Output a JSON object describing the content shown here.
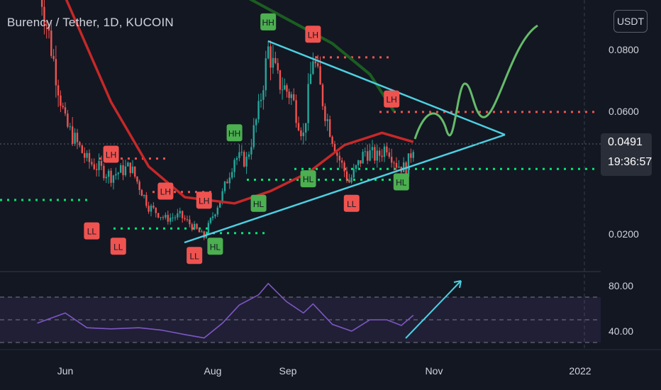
{
  "header": {
    "title": "Burency / Tether, 1D, KUCOIN",
    "currency_button": "USDT"
  },
  "price_box": {
    "price": "0.0491",
    "countdown": "19:36:57"
  },
  "colors": {
    "background": "#131722",
    "candle_up": "#26a69a",
    "candle_down": "#ef5350",
    "ma_red": "#c62828",
    "ma_green": "#1b5e20",
    "trendline": "#4dd0e1",
    "projection": "#66bb6a",
    "rsi": "#7e57c2",
    "hh_tag": "#4caf50",
    "ll_tag": "#ef5350",
    "resistance_dots": "#ef5350",
    "support_dots": "#00e676"
  },
  "chart_data": [
    {
      "type": "candlestick",
      "title": "Burency / Tether, 1D, KUCOIN",
      "x_tick_labels": [
        "Jun",
        "Aug",
        "Sep",
        "Nov",
        "2022"
      ],
      "y_tick_labels": [
        "0.0800",
        "0.0600",
        "0.0200"
      ],
      "current_price": 0.0491,
      "price_series": [
        {
          "x": "May 20",
          "y": 0.105
        },
        {
          "x": "Jun 1",
          "y": 0.056
        },
        {
          "x": "Jun 10",
          "y": 0.044
        },
        {
          "x": "Jun 20",
          "y": 0.039
        },
        {
          "x": "Jun 28",
          "y": 0.042
        },
        {
          "x": "Jul 5",
          "y": 0.029
        },
        {
          "x": "Jul 12",
          "y": 0.025
        },
        {
          "x": "Jul 18",
          "y": 0.026
        },
        {
          "x": "Jul 24",
          "y": 0.022
        },
        {
          "x": "Jul 28",
          "y": 0.019
        },
        {
          "x": "Aug 1",
          "y": 0.026
        },
        {
          "x": "Aug 5",
          "y": 0.033
        },
        {
          "x": "Aug 10",
          "y": 0.045
        },
        {
          "x": "Aug 15",
          "y": 0.044
        },
        {
          "x": "Aug 20",
          "y": 0.06
        },
        {
          "x": "Aug 24",
          "y": 0.08
        },
        {
          "x": "Aug 28",
          "y": 0.07
        },
        {
          "x": "Sep 3",
          "y": 0.065
        },
        {
          "x": "Sep 8",
          "y": 0.052
        },
        {
          "x": "Sep 12",
          "y": 0.078
        },
        {
          "x": "Sep 17",
          "y": 0.06
        },
        {
          "x": "Sep 22",
          "y": 0.046
        },
        {
          "x": "Sep 27",
          "y": 0.037
        },
        {
          "x": "Oct 3",
          "y": 0.047
        },
        {
          "x": "Oct 8",
          "y": 0.045
        },
        {
          "x": "Oct 12",
          "y": 0.049
        },
        {
          "x": "Oct 16",
          "y": 0.043
        },
        {
          "x": "Oct 20",
          "y": 0.041
        },
        {
          "x": "Oct 23",
          "y": 0.049
        }
      ],
      "moving_average_red": [
        {
          "x": "Jun 1",
          "y": 0.097
        },
        {
          "x": "Jun 20",
          "y": 0.063
        },
        {
          "x": "Jul 5",
          "y": 0.042
        },
        {
          "x": "Jul 20",
          "y": 0.032
        },
        {
          "x": "Aug 10",
          "y": 0.03
        },
        {
          "x": "Aug 25",
          "y": 0.034
        },
        {
          "x": "Sep 10",
          "y": 0.04
        },
        {
          "x": "Sep 25",
          "y": 0.049
        },
        {
          "x": "Oct 10",
          "y": 0.053
        },
        {
          "x": "Oct 23",
          "y": 0.05
        }
      ],
      "moving_average_green": [
        {
          "x": "Aug 15",
          "y": 0.097
        },
        {
          "x": "Sep 1",
          "y": 0.09
        },
        {
          "x": "Sep 20",
          "y": 0.082
        },
        {
          "x": "Oct 5",
          "y": 0.072
        },
        {
          "x": "Oct 15",
          "y": 0.06
        }
      ],
      "labels": [
        {
          "text": "LH",
          "x": "Jun 20",
          "y": 0.046
        },
        {
          "text": "LL",
          "x": "Jun 12",
          "y": 0.021
        },
        {
          "text": "LL",
          "x": "Jun 23",
          "y": 0.016
        },
        {
          "text": "LH",
          "x": "Jul 12",
          "y": 0.034
        },
        {
          "text": "LH",
          "x": "Jul 28",
          "y": 0.031
        },
        {
          "text": "LL",
          "x": "Jul 24",
          "y": 0.013
        },
        {
          "text": "HL",
          "x": "Aug 2",
          "y": 0.016
        },
        {
          "text": "HH",
          "x": "Aug 10",
          "y": 0.053
        },
        {
          "text": "HL",
          "x": "Aug 20",
          "y": 0.03
        },
        {
          "text": "HH",
          "x": "Aug 24",
          "y": 0.089
        },
        {
          "text": "LH",
          "x": "Sep 12",
          "y": 0.085
        },
        {
          "text": "HL",
          "x": "Sep 10",
          "y": 0.038
        },
        {
          "text": "LL",
          "x": "Sep 28",
          "y": 0.03
        },
        {
          "text": "LH",
          "x": "Oct 14",
          "y": 0.064
        },
        {
          "text": "HL",
          "x": "Oct 18",
          "y": 0.037
        }
      ],
      "resistance_levels": [
        0.0775,
        0.0598,
        0.0446,
        0.0337
      ],
      "support_levels": [
        0.0412,
        0.0377,
        0.0311,
        0.0218,
        0.0203
      ]
    },
    {
      "type": "line",
      "y_tick_labels": [
        "80.00",
        "40.00"
      ],
      "rsi_series": [
        {
          "x": "May 20",
          "y": 47
        },
        {
          "x": "Jun 1",
          "y": 56
        },
        {
          "x": "Jun 10",
          "y": 43
        },
        {
          "x": "Jun 20",
          "y": 42
        },
        {
          "x": "Jul 1",
          "y": 43
        },
        {
          "x": "Jul 10",
          "y": 41
        },
        {
          "x": "Jul 20",
          "y": 37
        },
        {
          "x": "Jul 28",
          "y": 34
        },
        {
          "x": "Aug 5",
          "y": 47
        },
        {
          "x": "Aug 12",
          "y": 63
        },
        {
          "x": "Aug 20",
          "y": 72
        },
        {
          "x": "Aug 24",
          "y": 82
        },
        {
          "x": "Sep 1",
          "y": 66
        },
        {
          "x": "Sep 8",
          "y": 56
        },
        {
          "x": "Sep 12",
          "y": 64
        },
        {
          "x": "Sep 20",
          "y": 46
        },
        {
          "x": "Sep 28",
          "y": 40
        },
        {
          "x": "Oct 5",
          "y": 50
        },
        {
          "x": "Oct 12",
          "y": 50
        },
        {
          "x": "Oct 18",
          "y": 45
        },
        {
          "x": "Oct 23",
          "y": 54
        }
      ],
      "levels": [
        70,
        50,
        30
      ]
    }
  ]
}
